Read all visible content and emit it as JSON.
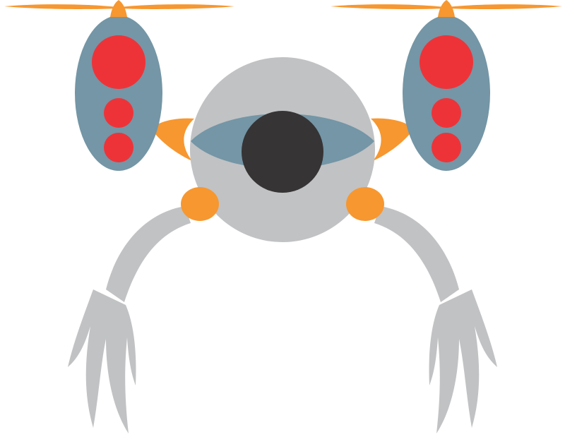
{
  "illustration": {
    "subject": "drone",
    "colors": {
      "background": "#ffffff",
      "propeller": "#f7972f",
      "rotor_pod": "#7496a6",
      "pod_light": "#ee3338",
      "body": "#c1c2c4",
      "eye": "#7496a6",
      "pupil": "#363435",
      "joint": "#f7972f",
      "leg": "#c1c2c4"
    },
    "icons": [
      "propeller-icon",
      "rotor-pod-icon",
      "drone-body-icon",
      "camera-eye-icon",
      "landing-leg-icon"
    ]
  }
}
